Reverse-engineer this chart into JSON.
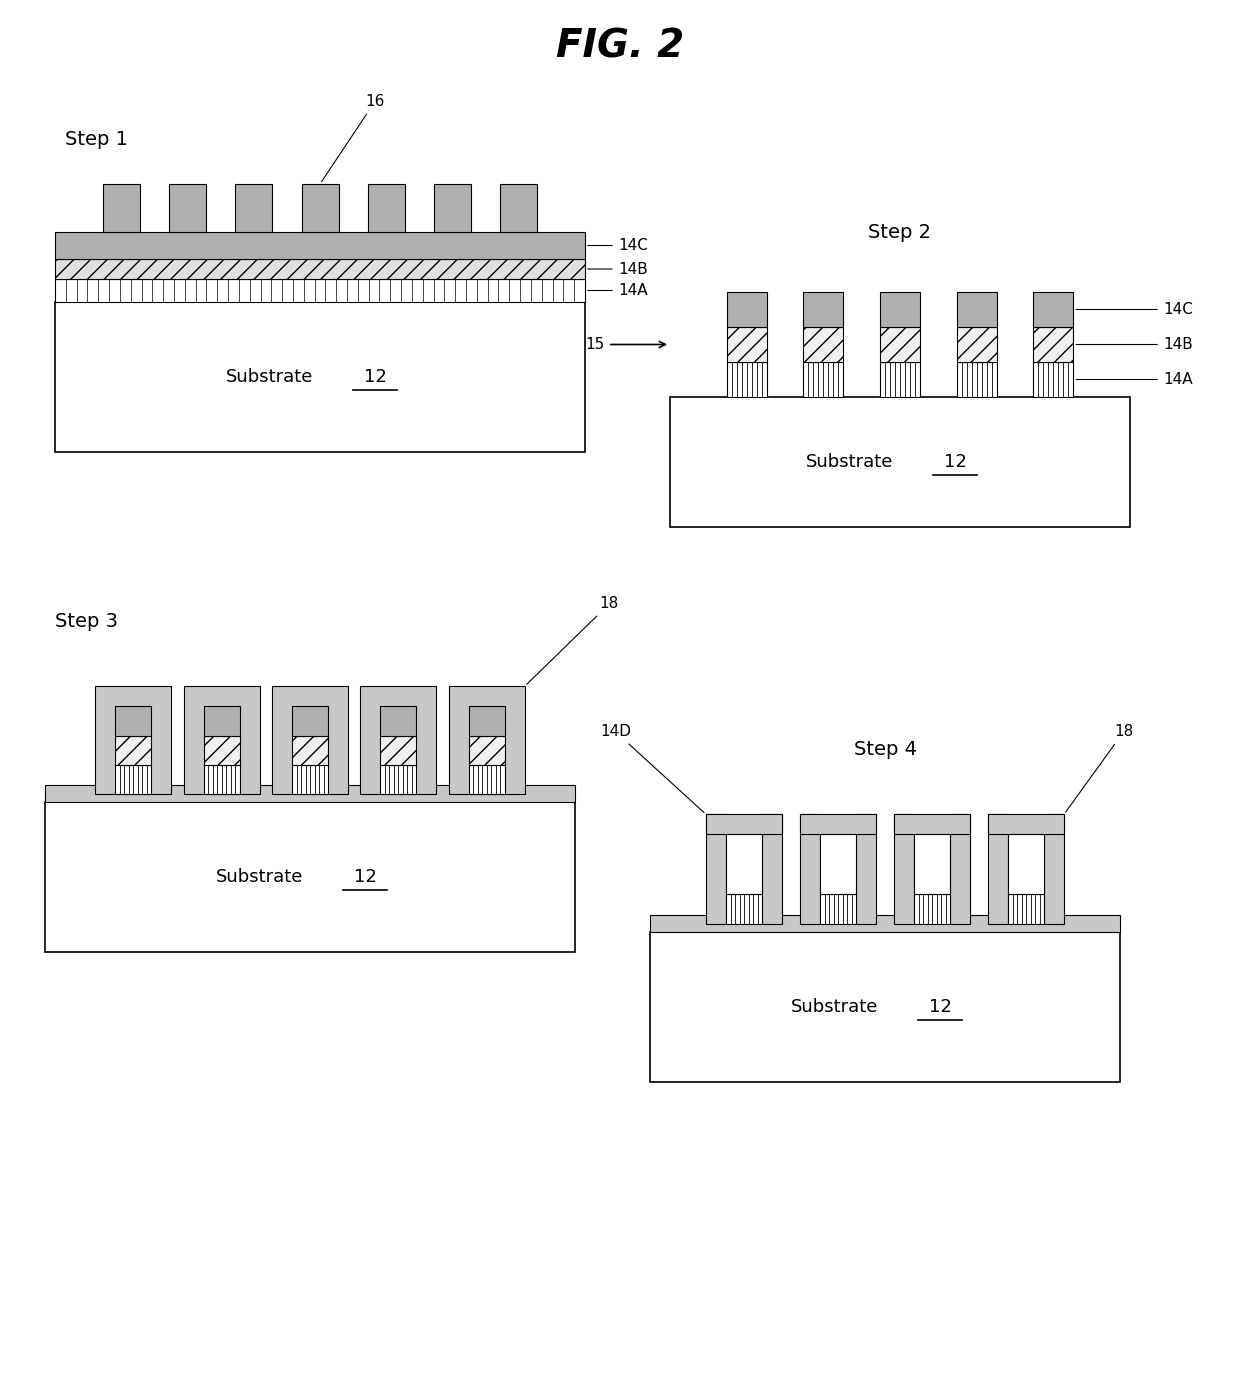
{
  "title": "FIG. 2",
  "bg_color": "#ffffff",
  "step1": {
    "label": "Step 1",
    "substrate_label": "Substrate",
    "substrate_ref": "12",
    "layer_refs": [
      "14C",
      "14B",
      "14A"
    ],
    "protrusion_ref": "16",
    "n_protrusions": 7,
    "colors": {
      "substrate": "#ffffff",
      "layer_14A": "#ffffff",
      "layer_14B": "#d8d8d8",
      "layer_14C": "#b0b0b0",
      "protrusion": "#b0b0b0",
      "border": "#000000"
    }
  },
  "step2": {
    "label": "Step 2",
    "substrate_label": "Substrate",
    "substrate_ref": "12",
    "layer_refs": [
      "14C",
      "14B",
      "14A"
    ],
    "arrow_ref": "15",
    "n_protrusions": 5,
    "colors": {
      "substrate": "#ffffff",
      "border": "#000000"
    }
  },
  "step3": {
    "label": "Step 3",
    "substrate_label": "Substrate",
    "substrate_ref": "12",
    "ref_18": "18",
    "n_protrusions": 5,
    "colors": {
      "substrate": "#ffffff",
      "conformal": "#c8c8c8",
      "border": "#000000"
    }
  },
  "step4": {
    "label": "Step 4",
    "substrate_label": "Substrate",
    "substrate_ref": "12",
    "ref_18": "18",
    "ref_14D": "14D",
    "n_protrusions": 4,
    "colors": {
      "substrate": "#ffffff",
      "conformal": "#c8c8c8",
      "border": "#000000"
    }
  }
}
